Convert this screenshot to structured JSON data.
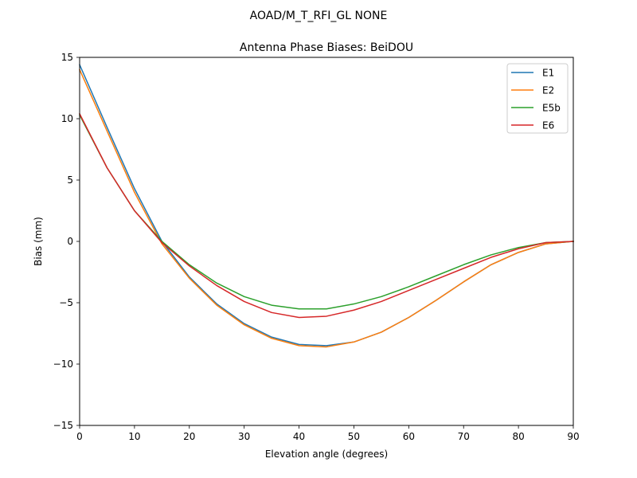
{
  "suptitle": "AOAD/M_T_RFI_GL NONE",
  "chart_data": {
    "type": "line",
    "title": "Antenna Phase Biases: BeiDOU",
    "xlabel": "Elevation angle (degrees)",
    "ylabel": "Bias (mm)",
    "xlim": [
      0,
      90
    ],
    "ylim": [
      -15,
      15
    ],
    "xticks": [
      0,
      10,
      20,
      30,
      40,
      50,
      60,
      70,
      80,
      90
    ],
    "yticks": [
      -15,
      -10,
      -5,
      0,
      5,
      10,
      15
    ],
    "ytick_labels": [
      "−15",
      "−10",
      "−5",
      "0",
      "5",
      "10",
      "15"
    ],
    "grid": false,
    "legend_position": "top-right",
    "x": [
      0,
      5,
      10,
      15,
      20,
      25,
      30,
      35,
      40,
      45,
      50,
      55,
      60,
      65,
      70,
      75,
      80,
      85,
      90
    ],
    "series": [
      {
        "name": "E1",
        "color": "#1f77b4",
        "values": [
          14.4,
          9.3,
          4.3,
          0.0,
          -2.9,
          -5.1,
          -6.7,
          -7.8,
          -8.4,
          -8.5,
          -8.2,
          -7.4,
          -6.2,
          -4.8,
          -3.3,
          -1.9,
          -0.9,
          -0.2,
          0.0
        ]
      },
      {
        "name": "E2",
        "color": "#ff7f0e",
        "values": [
          14.0,
          9.0,
          4.0,
          -0.2,
          -3.0,
          -5.2,
          -6.8,
          -7.9,
          -8.5,
          -8.6,
          -8.2,
          -7.4,
          -6.2,
          -4.8,
          -3.3,
          -1.9,
          -0.9,
          -0.2,
          0.0
        ]
      },
      {
        "name": "E5b",
        "color": "#2ca02c",
        "values": [
          10.3,
          6.0,
          2.5,
          0.0,
          -1.9,
          -3.4,
          -4.5,
          -5.2,
          -5.5,
          -5.5,
          -5.1,
          -4.5,
          -3.7,
          -2.8,
          -1.9,
          -1.1,
          -0.5,
          -0.1,
          0.0
        ]
      },
      {
        "name": "E6",
        "color": "#d62728",
        "values": [
          10.4,
          6.0,
          2.5,
          -0.1,
          -2.0,
          -3.6,
          -4.9,
          -5.8,
          -6.2,
          -6.1,
          -5.6,
          -4.9,
          -4.0,
          -3.1,
          -2.2,
          -1.3,
          -0.6,
          -0.1,
          0.0
        ]
      }
    ]
  }
}
